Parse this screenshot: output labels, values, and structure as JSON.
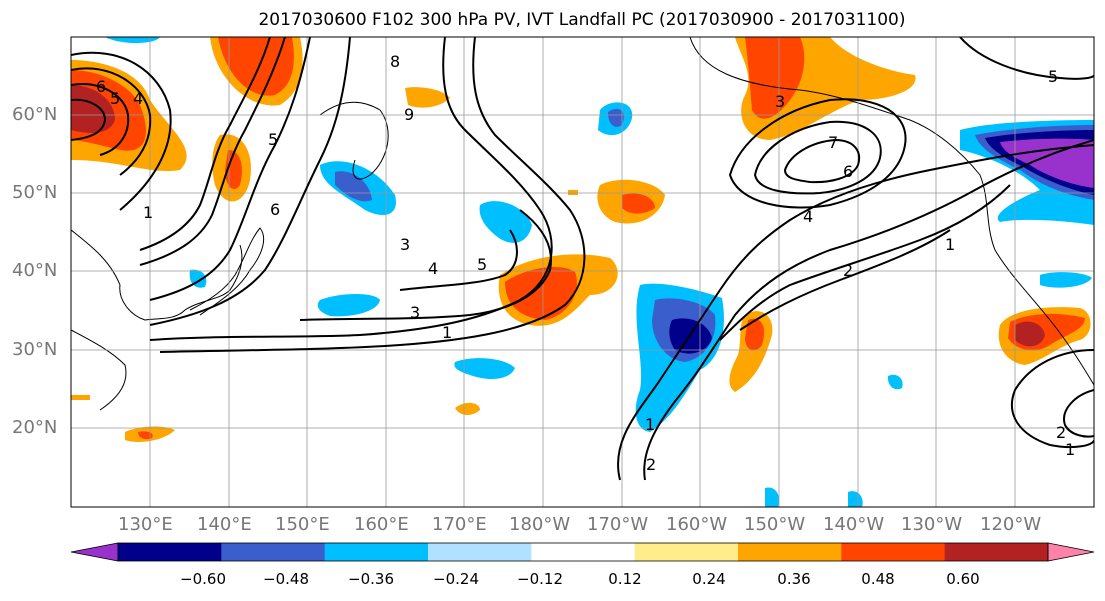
{
  "title": "2017030600 F102 300 hPa PV, IVT Landfall PC (2017030900 - 2017031100)",
  "lat_labels": [
    "60°N",
    "50°N",
    "40°N",
    "30°N",
    "20°N"
  ],
  "lon_labels": [
    "130°E",
    "140°E",
    "150°E",
    "160°E",
    "170°E",
    "180°W",
    "170°W",
    "160°W",
    "150°W",
    "140°W",
    "130°W",
    "120°W"
  ],
  "contour_labels": [
    "6",
    "5",
    "4",
    "8",
    "9",
    "5",
    "6",
    "3",
    "4",
    "5",
    "3",
    "1",
    "1",
    "3",
    "7",
    "6",
    "4",
    "2",
    "1",
    "5",
    "1",
    "2",
    "1",
    "2"
  ],
  "colorbar": {
    "ticks": [
      "−0.60",
      "−0.48",
      "−0.36",
      "−0.24",
      "−0.12",
      "0.12",
      "0.24",
      "0.36",
      "0.48",
      "0.60"
    ],
    "colors": [
      "#9932cc",
      "#00008b",
      "#3a5fcd",
      "#00bfff",
      "#b0e2ff",
      "#ffffff",
      "#ffec8b",
      "#ffa500",
      "#ff4500",
      "#b22222",
      "#ff82ab"
    ]
  }
}
